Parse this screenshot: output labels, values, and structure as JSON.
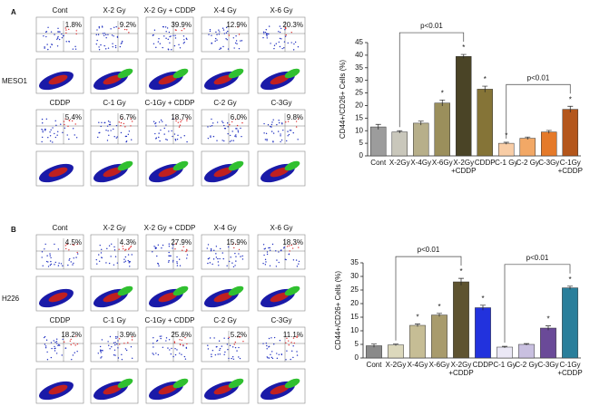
{
  "panels": [
    {
      "label": "A",
      "cell_line": "MESO1",
      "rows": [
        [
          "Cont",
          "X-2 Gy",
          "X-2 Gy + CDDP",
          "X-4 Gy",
          "X-6 Gy"
        ],
        [
          "CDDP",
          "C-1 Gy",
          "C-1Gy + CDDP",
          "C-2 Gy",
          "C-3Gy"
        ]
      ],
      "percentages": [
        [
          "1.8%",
          "9.2%",
          "39.9%",
          "12.9%",
          "20.3%"
        ],
        [
          "5.4%",
          "6.7%",
          "18.7%",
          "6.0%",
          "9.8%"
        ]
      ]
    },
    {
      "label": "B",
      "cell_line": "H226",
      "rows": [
        [
          "Cont",
          "X-2 Gy",
          "X-2 Gy + CDDP",
          "X-4 Gy",
          "X-6 Gy"
        ],
        [
          "CDDP",
          "C-1 Gy",
          "C-1Gy + CDDP",
          "C-2 Gy",
          "C-3Gy"
        ]
      ],
      "percentages": [
        [
          "4.5%",
          "4.3%",
          "27.9%",
          "15.9%",
          "18.3%"
        ],
        [
          "18.2%",
          "3.9%",
          "25.6%",
          "5.2%",
          "11.1%"
        ]
      ]
    }
  ],
  "chart_data": [
    {
      "type": "bar",
      "y_label": "CD44+/CD26+  Cells (%)",
      "categories": [
        "Cont",
        "X-2Gy",
        "X-4Gy",
        "X-6Gy",
        "X-2Gy\n+CDDP",
        "CDDP",
        "C-1 Gy",
        "C-2 Gy",
        "C-3Gy",
        "C-1Gy\n+CDDP"
      ],
      "values": [
        11.5,
        9.5,
        13,
        21,
        39.5,
        26.5,
        5,
        7,
        9.5,
        18.5
      ],
      "errors": [
        1,
        0.5,
        0.8,
        1.2,
        0.8,
        1.2,
        0.4,
        0.5,
        0.6,
        1.2
      ],
      "colors": [
        "#9c9c9c",
        "#c9c7bb",
        "#b7af8a",
        "#9b8f5c",
        "#4a4426",
        "#857437",
        "#f8cda6",
        "#f2a866",
        "#e57a2a",
        "#b4561b"
      ],
      "ylim": [
        0,
        45
      ],
      "yticks": [
        0,
        5,
        10,
        15,
        20,
        25,
        30,
        35,
        40,
        45
      ],
      "annotations": [
        {
          "text": "*",
          "category": "X-6Gy"
        },
        {
          "text": "*",
          "category": "X-2Gy\n+CDDP"
        },
        {
          "text": "*",
          "category": "CDDP"
        },
        {
          "text": "*",
          "category": "C-1 Gy"
        },
        {
          "text": "*",
          "category": "C-1Gy\n+CDDP"
        }
      ],
      "brackets": [
        {
          "text": "p<0.01",
          "from": "X-2Gy",
          "to": "X-2Gy\n+CDDP"
        },
        {
          "text": "p<0.01",
          "from": "C-1 Gy",
          "to": "C-1Gy\n+CDDP"
        }
      ]
    },
    {
      "type": "bar",
      "y_label": "CD44+/CD26+  Cells (%)",
      "categories": [
        "Cont",
        "X-2Gy",
        "X-4Gy",
        "X-6Gy",
        "X-2Gy\n+CDDP",
        "CDDP",
        "C-1 Gy",
        "C-2 Gy",
        "C-3Gy",
        "C-1Gy\n+CDDP"
      ],
      "values": [
        4.5,
        4.8,
        12,
        15.8,
        28,
        18.5,
        4,
        5,
        11,
        25.8
      ],
      "errors": [
        0.6,
        0.3,
        0.5,
        0.6,
        1.3,
        0.9,
        0.3,
        0.3,
        0.8,
        0.6
      ],
      "colors": [
        "#8a8a8a",
        "#dcd8bc",
        "#c6bd95",
        "#a89b6c",
        "#5e5330",
        "#2232dd",
        "#ebe8f6",
        "#c9c0e0",
        "#6a4a98",
        "#2a7f9b"
      ],
      "ylim": [
        0,
        35
      ],
      "yticks": [
        0,
        5,
        10,
        15,
        20,
        25,
        30,
        35
      ],
      "annotations": [
        {
          "text": "*",
          "category": "X-4Gy"
        },
        {
          "text": "*",
          "category": "X-6Gy"
        },
        {
          "text": "*",
          "category": "X-2Gy\n+CDDP"
        },
        {
          "text": "*",
          "category": "CDDP"
        },
        {
          "text": "*",
          "category": "C-3Gy"
        },
        {
          "text": "*",
          "category": "C-1Gy\n+CDDP"
        }
      ],
      "brackets": [
        {
          "text": "p<0.01",
          "from": "X-2Gy",
          "to": "X-2Gy\n+CDDP"
        },
        {
          "text": "p<0.01",
          "from": "C-1 Gy",
          "to": "C-1Gy\n+CDDP"
        }
      ]
    }
  ]
}
